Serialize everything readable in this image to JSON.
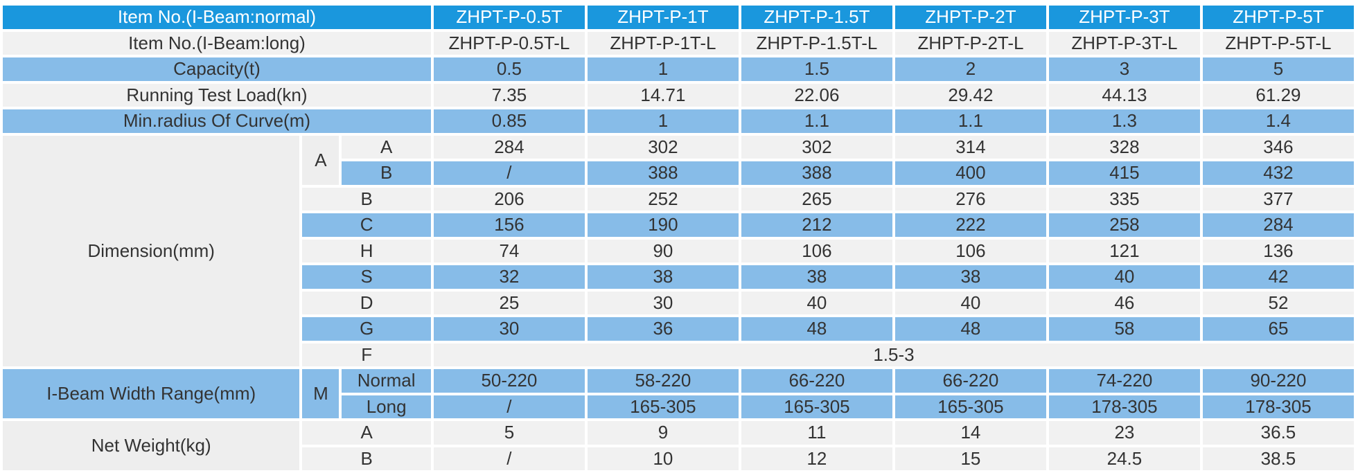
{
  "table": {
    "item_normal": {
      "label": "Item No.(I-Beam:normal)",
      "values": [
        "ZHPT-P-0.5T",
        "ZHPT-P-1T",
        "ZHPT-P-1.5T",
        "ZHPT-P-2T",
        "ZHPT-P-3T",
        "ZHPT-P-5T"
      ]
    },
    "item_long": {
      "label": "Item No.(I-Beam:long)",
      "values": [
        "ZHPT-P-0.5T-L",
        "ZHPT-P-1T-L",
        "ZHPT-P-1.5T-L",
        "ZHPT-P-2T-L",
        "ZHPT-P-3T-L",
        "ZHPT-P-5T-L"
      ]
    },
    "capacity": {
      "label": "Capacity(t)",
      "values": [
        "0.5",
        "1",
        "1.5",
        "2",
        "3",
        "5"
      ]
    },
    "test_load": {
      "label": "Running Test Load(kn)",
      "values": [
        "7.35",
        "14.71",
        "22.06",
        "29.42",
        "44.13",
        "61.29"
      ]
    },
    "min_radius": {
      "label": "Min.radius Of Curve(m)",
      "values": [
        "0.85",
        "1",
        "1.1",
        "1.1",
        "1.3",
        "1.4"
      ]
    },
    "dimension": {
      "label": "Dimension(mm)",
      "a_group": "A",
      "a_a": {
        "label": "A",
        "values": [
          "284",
          "302",
          "302",
          "314",
          "328",
          "346"
        ]
      },
      "a_b": {
        "label": "B",
        "values": [
          "/",
          "388",
          "388",
          "400",
          "415",
          "432"
        ]
      },
      "b": {
        "label": "B",
        "values": [
          "206",
          "252",
          "265",
          "276",
          "335",
          "377"
        ]
      },
      "c": {
        "label": "C",
        "values": [
          "156",
          "190",
          "212",
          "222",
          "258",
          "284"
        ]
      },
      "h": {
        "label": "H",
        "values": [
          "74",
          "90",
          "106",
          "106",
          "121",
          "136"
        ]
      },
      "s": {
        "label": "S",
        "values": [
          "32",
          "38",
          "38",
          "38",
          "40",
          "42"
        ]
      },
      "d": {
        "label": "D",
        "values": [
          "25",
          "30",
          "40",
          "40",
          "46",
          "52"
        ]
      },
      "g": {
        "label": "G",
        "values": [
          "30",
          "36",
          "48",
          "48",
          "58",
          "65"
        ]
      },
      "f": {
        "label": "F",
        "value": "1.5-3"
      }
    },
    "beam_width": {
      "label": "I-Beam Width Range(mm)",
      "group": "M",
      "normal": {
        "label": "Normal",
        "values": [
          "50-220",
          "58-220",
          "66-220",
          "66-220",
          "74-220",
          "90-220"
        ]
      },
      "long": {
        "label": "Long",
        "values": [
          "/",
          "165-305",
          "165-305",
          "165-305",
          "178-305",
          "178-305"
        ]
      }
    },
    "net_weight": {
      "label": "Net Weight(kg)",
      "a": {
        "label": "A",
        "values": [
          "5",
          "9",
          "11",
          "14",
          "23",
          "36.5"
        ]
      },
      "b": {
        "label": "B",
        "values": [
          "/",
          "10",
          "12",
          "15",
          "24.5",
          "38.5"
        ]
      }
    }
  },
  "colors": {
    "header_blue": "#1a97dd",
    "row_blue": "#87bce8",
    "row_grey": "#f1f1f1",
    "label_grey": "#eeeeee"
  }
}
